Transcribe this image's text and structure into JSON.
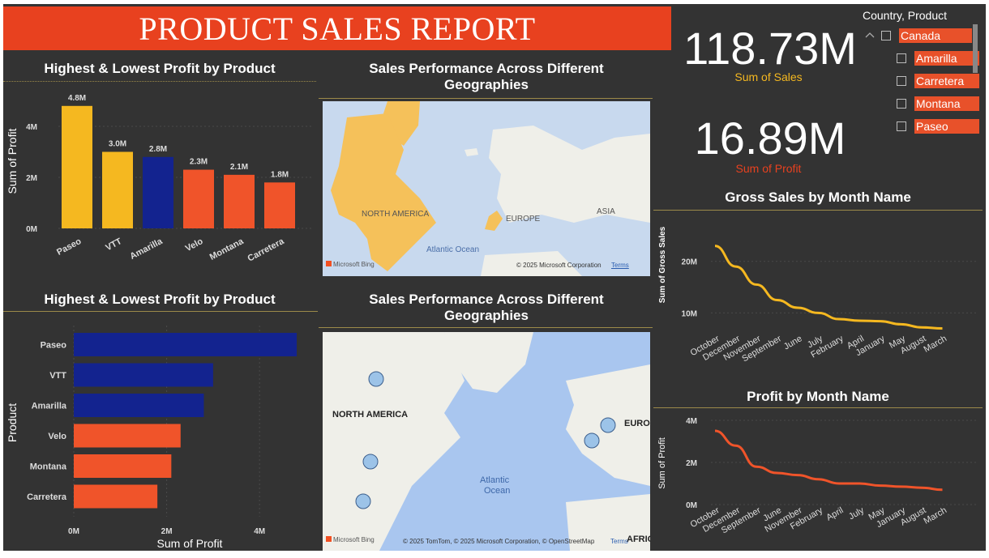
{
  "report": {
    "title": "PRODUCT SALES REPORT"
  },
  "kpis": [
    {
      "value": "118.73M",
      "label": "Sum of  Sales",
      "color": "#f5b820"
    },
    {
      "value": "16.89M",
      "label": "Sum of Profit",
      "color": "#e8411f"
    }
  ],
  "slicer": {
    "title": "Country, Product",
    "items": [
      "Canada",
      "Amarilla",
      "Carretera",
      "Montana",
      "Paseo"
    ]
  },
  "panels": {
    "profit_bar_title": "Highest & Lowest Profit by Product",
    "profit_hbar_title": "Highest & Lowest Profit by Product",
    "geo_map1_title": "Sales Performance Across Different Geographies",
    "geo_map2_title": "Sales Performance Across Different Geographies",
    "gross_sales_title": "Gross Sales by Month Name",
    "profit_month_title": "Profit by Month Name"
  },
  "map1": {
    "labels": [
      "NORTH AMERICA",
      "EUROPE",
      "ASIA",
      "Atlantic Ocean"
    ],
    "logo": "Microsoft Bing",
    "copyright": "© 2025 Microsoft Corporation",
    "terms": "Terms"
  },
  "map2": {
    "labels": [
      "NORTH AMERICA",
      "EUROP",
      "Atlantic",
      "Ocean",
      "AFRIC"
    ],
    "logo": "Microsoft Bing",
    "copyright": "© 2025 TomTom, © 2025 Microsoft Corporation, © OpenStreetMap",
    "terms": "Terms"
  },
  "colors": {
    "background": "#333333",
    "title_bar": "#e8411f",
    "gold": "#f5b820",
    "navy": "#13238f",
    "orange": "#f0542a",
    "map_sea": "#c8d9ee",
    "map_sea2": "#a9c6ef",
    "map_land": "#efefe9"
  },
  "chart_data": [
    {
      "type": "bar",
      "title": "Highest & Lowest Profit by Product",
      "ylabel": "Sum of Profit",
      "categories": [
        "Paseo",
        "VTT",
        "Amarilla",
        "Velo",
        "Montana",
        "Carretera"
      ],
      "values": [
        4.8,
        3.0,
        2.8,
        2.3,
        2.1,
        1.8
      ],
      "data_labels": [
        "4.8M",
        "3.0M",
        "2.8M",
        "2.3M",
        "2.1M",
        "1.8M"
      ],
      "colors": [
        "#f5b820",
        "#f5b820",
        "#13238f",
        "#f0542a",
        "#f0542a",
        "#f0542a"
      ],
      "yticks": [
        "0M",
        "2M",
        "4M"
      ],
      "ylim": [
        0,
        5
      ],
      "unit": "M"
    },
    {
      "type": "bar",
      "orientation": "horizontal",
      "title": "Highest & Lowest Profit by Product",
      "ylabel": "Product",
      "xlabel": "Sum of Profit",
      "categories": [
        "Paseo",
        "VTT",
        "Amarilla",
        "Velo",
        "Montana",
        "Carretera"
      ],
      "values": [
        4.8,
        3.0,
        2.8,
        2.3,
        2.1,
        1.8
      ],
      "colors": [
        "#13238f",
        "#13238f",
        "#13238f",
        "#f0542a",
        "#f0542a",
        "#f0542a"
      ],
      "xticks": [
        "0M",
        "2M",
        "4M"
      ],
      "xlim": [
        0,
        4.8
      ],
      "unit": "M"
    },
    {
      "type": "line",
      "title": "Gross Sales by Month Name",
      "ylabel": "Sum of Gross Sales",
      "x": [
        "October",
        "December",
        "November",
        "September",
        "June",
        "July",
        "February",
        "April",
        "January",
        "May",
        "August",
        "March"
      ],
      "values": [
        23,
        19,
        15.5,
        12.5,
        11,
        10,
        8.8,
        8.5,
        8.4,
        7.8,
        7.2,
        7.0
      ],
      "yticks": [
        "10M",
        "20M"
      ],
      "ylim": [
        3,
        24
      ],
      "color": "#f5b820",
      "unit": "M"
    },
    {
      "type": "line",
      "title": "Profit by Month Name",
      "ylabel": "Sum of Profit",
      "x": [
        "October",
        "December",
        "September",
        "June",
        "November",
        "February",
        "April",
        "July",
        "May",
        "January",
        "August",
        "March"
      ],
      "values": [
        3.5,
        2.8,
        1.8,
        1.5,
        1.4,
        1.2,
        1.0,
        1.0,
        0.9,
        0.85,
        0.8,
        0.7
      ],
      "yticks": [
        "0M",
        "2M",
        "4M"
      ],
      "ylim": [
        0,
        4
      ],
      "color": "#f0542a",
      "unit": "M"
    }
  ]
}
